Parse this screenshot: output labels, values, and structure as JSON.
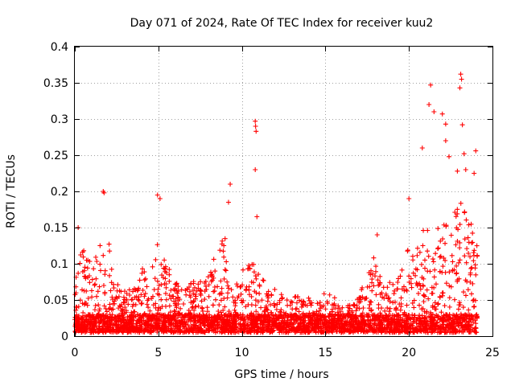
{
  "chart_data": {
    "type": "scatter",
    "title": "Day 071 of 2024, Rate Of TEC Index for receiver kuu2",
    "xlabel": "GPS time / hours",
    "ylabel": "ROTI / TECUs",
    "xlim": [
      0,
      25
    ],
    "ylim": [
      0,
      0.4
    ],
    "x_ticks": [
      0,
      5,
      10,
      15,
      20,
      25
    ],
    "x_tick_labels": [
      "0",
      "5",
      "10",
      "15",
      "20",
      "25"
    ],
    "y_ticks": [
      0,
      0.05,
      0.1,
      0.15,
      0.2,
      0.25,
      0.3,
      0.35,
      0.4
    ],
    "y_tick_labels": [
      "0",
      "0.05",
      "0.1",
      "0.15",
      "0.2",
      "0.25",
      "0.3",
      "0.35",
      "0.4"
    ],
    "grid": true,
    "marker": "plus",
    "series": [
      {
        "name": "ROTI",
        "color": "#ff0000",
        "notable_points": [
          {
            "x": 0.2,
            "y": 0.15
          },
          {
            "x": 1.7,
            "y": 0.2
          },
          {
            "x": 1.75,
            "y": 0.198
          },
          {
            "x": 4.95,
            "y": 0.195
          },
          {
            "x": 5.1,
            "y": 0.19
          },
          {
            "x": 9.3,
            "y": 0.21
          },
          {
            "x": 9.2,
            "y": 0.185
          },
          {
            "x": 10.8,
            "y": 0.297
          },
          {
            "x": 10.82,
            "y": 0.29
          },
          {
            "x": 10.85,
            "y": 0.283
          },
          {
            "x": 10.8,
            "y": 0.23
          },
          {
            "x": 10.9,
            "y": 0.165
          },
          {
            "x": 18.1,
            "y": 0.14
          },
          {
            "x": 20.0,
            "y": 0.19
          },
          {
            "x": 20.8,
            "y": 0.26
          },
          {
            "x": 21.3,
            "y": 0.347
          },
          {
            "x": 21.2,
            "y": 0.32
          },
          {
            "x": 21.5,
            "y": 0.31
          },
          {
            "x": 22.0,
            "y": 0.307
          },
          {
            "x": 22.2,
            "y": 0.293
          },
          {
            "x": 22.2,
            "y": 0.27
          },
          {
            "x": 22.4,
            "y": 0.248
          },
          {
            "x": 23.1,
            "y": 0.362
          },
          {
            "x": 23.15,
            "y": 0.355
          },
          {
            "x": 23.05,
            "y": 0.343
          },
          {
            "x": 23.2,
            "y": 0.292
          },
          {
            "x": 23.3,
            "y": 0.252
          },
          {
            "x": 23.4,
            "y": 0.23
          },
          {
            "x": 24.0,
            "y": 0.256
          },
          {
            "x": 23.9,
            "y": 0.225
          },
          {
            "x": 22.9,
            "y": 0.228
          }
        ],
        "envelope_hours": [
          0,
          0.5,
          1,
          1.5,
          2,
          2.5,
          3,
          3.5,
          4,
          4.5,
          5,
          5.5,
          6,
          6.5,
          7,
          7.5,
          8,
          8.5,
          9,
          9.5,
          10,
          10.5,
          11,
          11.5,
          12,
          12.5,
          13,
          13.5,
          14,
          14.5,
          15,
          15.5,
          16,
          16.5,
          17,
          17.5,
          18,
          18.5,
          19,
          19.5,
          20,
          20.5,
          21,
          21.5,
          22,
          22.5,
          23,
          23.5,
          24
        ],
        "envelope_typical_max": [
          0.1,
          0.12,
          0.1,
          0.12,
          0.13,
          0.07,
          0.06,
          0.06,
          0.09,
          0.08,
          0.13,
          0.1,
          0.07,
          0.06,
          0.07,
          0.08,
          0.09,
          0.12,
          0.13,
          0.06,
          0.09,
          0.1,
          0.1,
          0.06,
          0.06,
          0.06,
          0.05,
          0.05,
          0.05,
          0.04,
          0.06,
          0.05,
          0.04,
          0.04,
          0.05,
          0.08,
          0.11,
          0.07,
          0.07,
          0.08,
          0.12,
          0.12,
          0.15,
          0.14,
          0.16,
          0.15,
          0.2,
          0.16,
          0.15
        ],
        "baseline_range": [
          0.005,
          0.03
        ]
      }
    ]
  }
}
